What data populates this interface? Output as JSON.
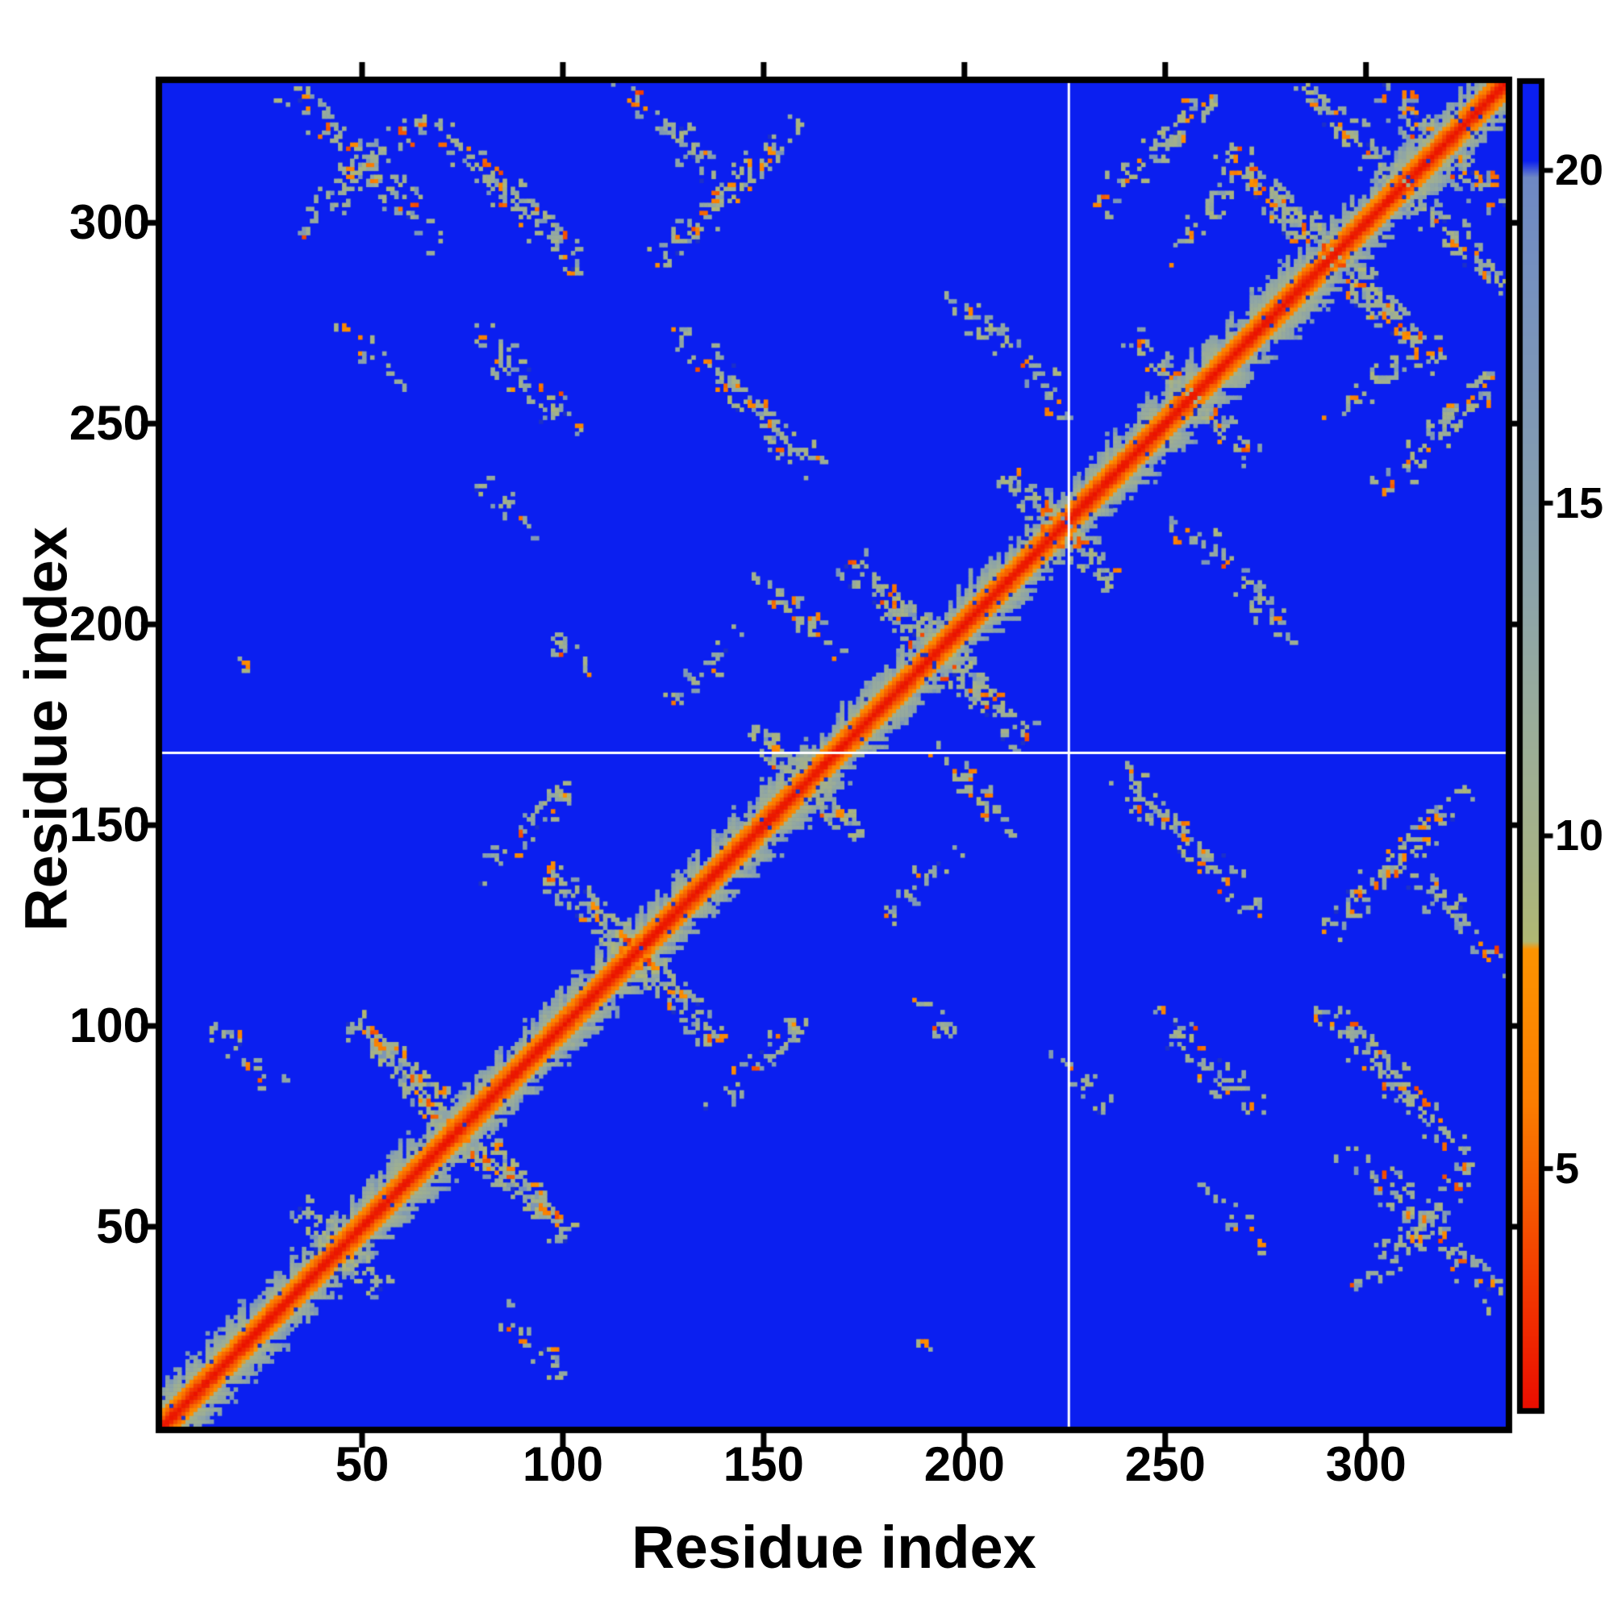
{
  "figure": {
    "kind": "protein residue-residue distance matrix heatmap",
    "background_color": "#ffffff",
    "text_color": "#000000",
    "spine_color": "#000000"
  },
  "axes": {
    "x": {
      "label": "Residue index",
      "ticks": [
        50,
        100,
        150,
        200,
        250,
        300
      ],
      "range": [
        1,
        335
      ]
    },
    "y": {
      "label": "Residue index",
      "ticks": [
        50,
        100,
        150,
        200,
        250,
        300
      ],
      "range": [
        1,
        335
      ]
    }
  },
  "colorbar": {
    "ticks": [
      5,
      10,
      15,
      20
    ],
    "vmin": 1.4,
    "vmax": 21.3,
    "orientation": "vertical",
    "position": "right"
  },
  "chart_data": {
    "type": "heatmap",
    "title": "",
    "xlabel": "Residue index",
    "ylabel": "Residue index",
    "n_residues": 335,
    "symmetric": true,
    "background_value": 21.3,
    "diagonal_core_value": 1.5,
    "seed": 20240613,
    "colors": {
      "background_blue": "#0b1ff0",
      "dark_speckle_blue": "#1c31c9",
      "diagonal_red": "#ea0e00",
      "flank_orange": "#fa7d00",
      "contact_sage": "#a3b18b",
      "fringe_steel": "#8099b3",
      "crosshair_white": "#ffffff"
    },
    "colormap_stops": [
      [
        1.4,
        "#ea0e00"
      ],
      [
        3.0,
        "#f23300"
      ],
      [
        4.6,
        "#f65b00"
      ],
      [
        6.0,
        "#fa7d00"
      ],
      [
        8.3,
        "#fc9300"
      ],
      [
        8.42,
        "#b0b873"
      ],
      [
        9.6,
        "#a6b286"
      ],
      [
        11.5,
        "#9bad98"
      ],
      [
        13.5,
        "#8da4a8"
      ],
      [
        16.0,
        "#8099b3"
      ],
      [
        18.5,
        "#7590bf"
      ],
      [
        19.9,
        "#6e88c4"
      ],
      [
        20.15,
        "#0b1ff0"
      ],
      [
        21.3,
        "#0b1ff0"
      ]
    ],
    "crosshair_lines": {
      "horizontal_residue": 168,
      "vertical_residue": 226,
      "color": "#ffffff"
    },
    "diagonal_band": {
      "red_half_width": 1,
      "orange_half_width": 4,
      "halo_half_width_min": 5,
      "halo_half_width_max": 10
    },
    "bowtie_crossings": [
      {
        "center": 44,
        "half_length": 10,
        "width": 2.5,
        "density": 0.7
      },
      {
        "center": 74,
        "half_length": 27,
        "width": 3.0,
        "density": 0.75
      },
      {
        "center": 117,
        "half_length": 21,
        "width": 3.0,
        "density": 0.7
      },
      {
        "center": 160,
        "half_length": 13,
        "width": 2.5,
        "density": 0.6
      },
      {
        "center": 193,
        "half_length": 22,
        "width": 3.0,
        "density": 0.7
      },
      {
        "center": 223,
        "half_length": 14,
        "width": 2.5,
        "density": 0.65
      },
      {
        "center": 256,
        "half_length": 15,
        "width": 2.5,
        "density": 0.6
      },
      {
        "center": 291,
        "half_length": 27,
        "width": 3.0,
        "density": 0.75
      },
      {
        "center": 318,
        "half_length": 15,
        "width": 3.0,
        "density": 0.7
      }
    ],
    "contact_strokes": [
      {
        "i": 34,
        "j": 297,
        "dir": 1,
        "len": 28,
        "width": 3.0,
        "density": 0.55
      },
      {
        "i": 62,
        "j": 330,
        "dir": -1,
        "len": 42,
        "width": 3.0,
        "density": 0.7
      },
      {
        "i": 75,
        "j": 275,
        "dir": -1,
        "len": 28,
        "width": 3.0,
        "density": 0.55
      },
      {
        "i": 124,
        "j": 276,
        "dir": -1,
        "len": 38,
        "width": 3.0,
        "density": 0.65
      },
      {
        "i": 120,
        "j": 286,
        "dir": 1,
        "len": 38,
        "width": 3.0,
        "density": 0.55
      },
      {
        "i": 113,
        "j": 335,
        "dir": -1,
        "len": 27,
        "width": 3.0,
        "density": 0.6
      },
      {
        "i": 30,
        "j": 334,
        "dir": -1,
        "len": 39,
        "width": 3.0,
        "density": 0.65
      },
      {
        "i": 79,
        "j": 236,
        "dir": -1,
        "len": 14,
        "width": 2.5,
        "density": 0.45
      },
      {
        "i": 40,
        "j": 278,
        "dir": -1,
        "len": 20,
        "width": 2.0,
        "density": 0.35
      },
      {
        "i": 196,
        "j": 282,
        "dir": -1,
        "len": 30,
        "width": 3.0,
        "density": 0.5
      },
      {
        "i": 233,
        "j": 303,
        "dir": 1,
        "len": 30,
        "width": 3.0,
        "density": 0.55
      },
      {
        "i": 246,
        "j": 288,
        "dir": 1,
        "len": 26,
        "width": 2.5,
        "density": 0.5
      },
      {
        "i": 282,
        "j": 335,
        "dir": -1,
        "len": 30,
        "width": 3.0,
        "density": 0.6
      },
      {
        "i": 94,
        "j": 199,
        "dir": -1,
        "len": 14,
        "width": 2.0,
        "density": 0.35
      },
      {
        "i": 14,
        "j": 196,
        "dir": -1,
        "len": 10,
        "width": 1.5,
        "density": 0.3
      },
      {
        "i": 12,
        "j": 100,
        "dir": -1,
        "len": 16,
        "width": 2.5,
        "density": 0.4
      },
      {
        "i": 78,
        "j": 136,
        "dir": 1,
        "len": 24,
        "width": 3.0,
        "density": 0.55
      },
      {
        "i": 125,
        "j": 178,
        "dir": 1,
        "len": 20,
        "width": 2.5,
        "density": 0.45
      },
      {
        "i": 148,
        "j": 212,
        "dir": -1,
        "len": 20,
        "width": 2.5,
        "density": 0.45
      }
    ],
    "speckle_fractions": {
      "orange": 0.1,
      "red_orange": 0.035,
      "sage": 0.66,
      "steel_fringe": 0.12,
      "olive": 0.08,
      "dark_blue_dot": 0.04
    }
  }
}
